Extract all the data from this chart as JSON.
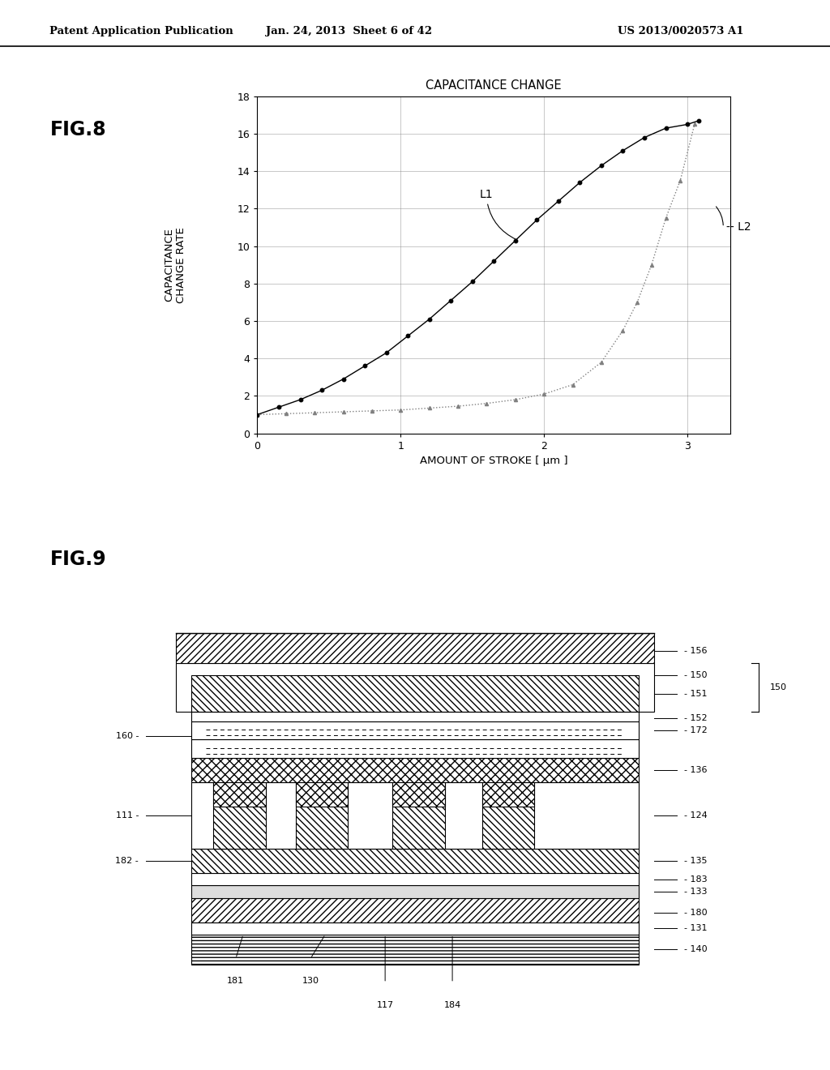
{
  "header_left": "Patent Application Publication",
  "header_center": "Jan. 24, 2013  Sheet 6 of 42",
  "header_right": "US 2013/0020573 A1",
  "fig8_title": "FIG.8",
  "graph_title": "CAPACITANCE CHANGE",
  "ylabel": "CAPACITANCE\nCHANGE RATE",
  "xlabel": "AMOUNT OF STROKE [ μm ]",
  "xlim": [
    0,
    3.3
  ],
  "ylim": [
    0,
    18
  ],
  "xticks": [
    0,
    1,
    2,
    3
  ],
  "yticks": [
    0,
    2,
    4,
    6,
    8,
    10,
    12,
    14,
    16,
    18
  ],
  "L1_x": [
    0.0,
    0.15,
    0.3,
    0.45,
    0.6,
    0.75,
    0.9,
    1.05,
    1.2,
    1.35,
    1.5,
    1.65,
    1.8,
    1.95,
    2.1,
    2.25,
    2.4,
    2.55,
    2.7,
    2.85,
    3.0,
    3.08
  ],
  "L1_y": [
    1.0,
    1.4,
    1.8,
    2.3,
    2.9,
    3.6,
    4.3,
    5.2,
    6.1,
    7.1,
    8.1,
    9.2,
    10.3,
    11.4,
    12.4,
    13.4,
    14.3,
    15.1,
    15.8,
    16.3,
    16.5,
    16.7
  ],
  "L2_x": [
    0.0,
    0.2,
    0.4,
    0.6,
    0.8,
    1.0,
    1.2,
    1.4,
    1.6,
    1.8,
    2.0,
    2.2,
    2.4,
    2.55,
    2.65,
    2.75,
    2.85,
    2.95,
    3.05
  ],
  "L2_y": [
    1.0,
    1.05,
    1.1,
    1.15,
    1.2,
    1.25,
    1.35,
    1.45,
    1.6,
    1.8,
    2.1,
    2.6,
    3.8,
    5.5,
    7.0,
    9.0,
    11.5,
    13.5,
    16.5
  ],
  "fig9_title": "FIG.9"
}
